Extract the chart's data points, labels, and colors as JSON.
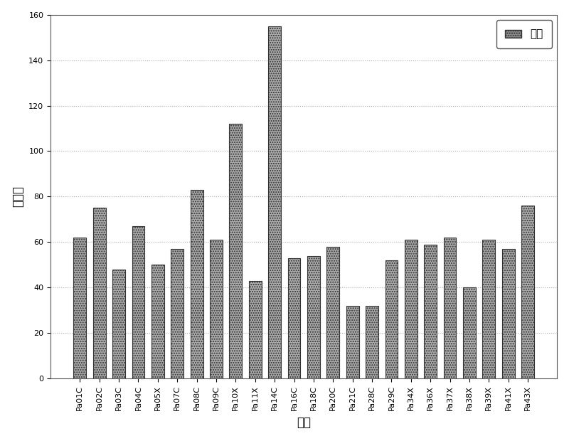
{
  "categories": [
    "Pa01C",
    "Pa02C",
    "Pa03C",
    "Pa04C",
    "Pa05X",
    "Pa07C",
    "Pa08C",
    "Pa09C",
    "Pa10X",
    "Pa11X",
    "Pa14C",
    "Pa16C",
    "Pa18C",
    "Pa20C",
    "Pa21C",
    "Pa28C",
    "Pa29C",
    "Pa34X",
    "Pa36X",
    "Pa37X",
    "Pa38X",
    "Pa39X",
    "Pa41X",
    "Pa43X"
  ],
  "values": [
    62,
    75,
    48,
    67,
    50,
    57,
    83,
    61,
    112,
    43,
    155,
    53,
    54,
    58,
    32,
    32,
    52,
    61,
    59,
    62,
    40,
    61,
    57,
    76
  ],
  "bar_facecolor": "#aaaaaa",
  "bar_edgecolor": "#333333",
  "title": "",
  "xlabel": "肿癌",
  "ylabel": "改变数",
  "ylim": [
    0,
    160
  ],
  "yticks": [
    0,
    20,
    40,
    60,
    80,
    100,
    120,
    140,
    160
  ],
  "legend_label": "缺失",
  "legend_facecolor": "#888888",
  "background_color": "#ffffff",
  "grid_color": "#aaaaaa",
  "xlabel_fontsize": 12,
  "ylabel_fontsize": 12,
  "tick_fontsize": 8,
  "legend_fontsize": 11,
  "bar_width": 0.65
}
